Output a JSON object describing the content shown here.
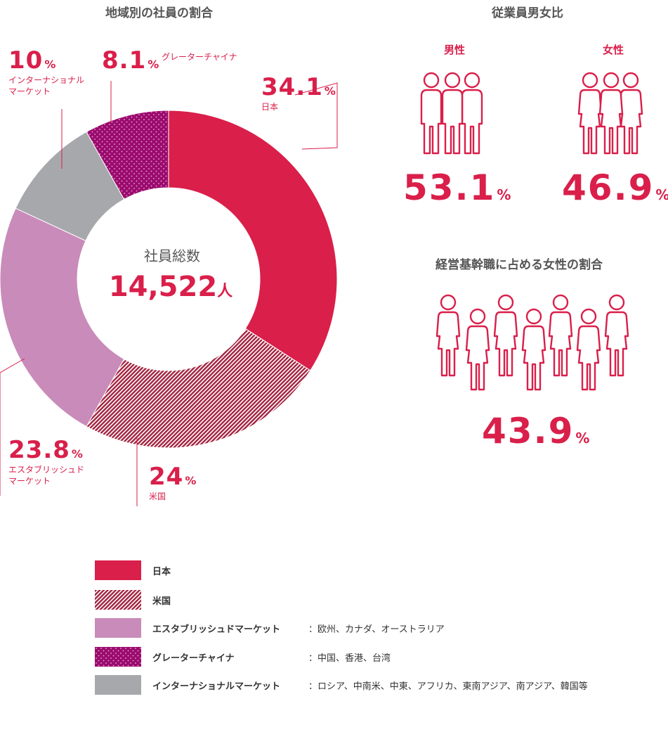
{
  "left_title": "地域別の社員の割合",
  "right_title": "従業員男女比",
  "center": {
    "label": "社員総数",
    "value": "14,522",
    "unit": "人"
  },
  "chart_data": {
    "type": "pie",
    "title": "地域別の社員の割合",
    "segments": [
      {
        "key": "japan",
        "name": "日本",
        "value": 34.1,
        "label": "34.1",
        "unit": "%",
        "color": "#d91f4a",
        "pattern": "solid"
      },
      {
        "key": "us",
        "name": "米国",
        "value": 24,
        "label": "24",
        "unit": "%",
        "color": "#a3223f",
        "pattern": "diagonal-lines"
      },
      {
        "key": "established",
        "name": "エスタブリッシュド\nマーケット",
        "value": 23.8,
        "label": "23.8",
        "unit": "%",
        "color": "#c98bb9",
        "pattern": "solid"
      },
      {
        "key": "international",
        "name": "インターナショナル\nマーケット",
        "value": 10,
        "label": "10",
        "unit": "%",
        "color": "#a7a8ac",
        "pattern": "solid"
      },
      {
        "key": "greater_china",
        "name": "グレーターチャイナ",
        "value": 8.1,
        "label": "8.1",
        "unit": "%",
        "color": "#9b0b6e",
        "pattern": "dots"
      }
    ]
  },
  "gender": {
    "male_label": "男性",
    "female_label": "女性",
    "male_value": "53.1",
    "female_value": "46.9",
    "unit": "%"
  },
  "management": {
    "title": "経営基幹職に占める女性の割合",
    "value": "43.9",
    "unit": "%"
  },
  "legend": [
    {
      "label": "日本",
      "note": ""
    },
    {
      "label": "米国",
      "note": ""
    },
    {
      "label": "エスタブリッシュドマーケット",
      "note": "：欧州、カナダ、オーストラリア"
    },
    {
      "label": "グレーターチャイナ",
      "note": "：中国、香港、台湾"
    },
    {
      "label": "インターナショナルマーケット",
      "note": "：ロシア、中南米、中東、アフリカ、東南アジア、南アジア、韓国等"
    }
  ],
  "colors": {
    "accent": "#d91f4a",
    "leader_line": "#d91f4a",
    "icon_stroke": "#d91f4a"
  },
  "icons": {
    "male": "male-person-icon",
    "female": "female-person-icon"
  }
}
